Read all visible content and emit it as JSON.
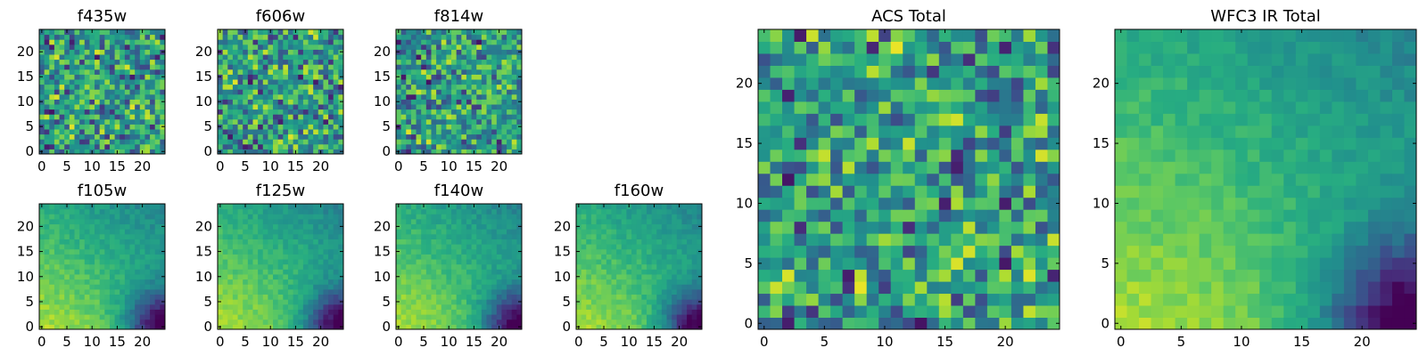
{
  "figure": {
    "colormap": "viridis",
    "background": "#ffffff"
  },
  "chart_data": [
    {
      "id": "f435w",
      "type": "heatmap",
      "title": "f435w",
      "pattern": "noise",
      "seed": 11,
      "n": 25,
      "xticks": [
        0,
        5,
        10,
        15,
        20
      ],
      "yticks": [
        0,
        5,
        10,
        15,
        20
      ],
      "xlim": [
        0,
        24
      ],
      "ylim": [
        0,
        24
      ],
      "grid": false
    },
    {
      "id": "f606w",
      "type": "heatmap",
      "title": "f606w",
      "pattern": "noise",
      "seed": 23,
      "n": 25,
      "xticks": [
        0,
        5,
        10,
        15,
        20
      ],
      "yticks": [
        0,
        5,
        10,
        15,
        20
      ],
      "xlim": [
        0,
        24
      ],
      "ylim": [
        0,
        24
      ],
      "grid": false
    },
    {
      "id": "f814w",
      "type": "heatmap",
      "title": "f814w",
      "pattern": "noise",
      "seed": 37,
      "n": 25,
      "xticks": [
        0,
        5,
        10,
        15,
        20
      ],
      "yticks": [
        0,
        5,
        10,
        15,
        20
      ],
      "xlim": [
        0,
        24
      ],
      "ylim": [
        0,
        24
      ],
      "grid": false
    },
    {
      "id": "f105w",
      "type": "heatmap",
      "title": "f105w",
      "pattern": "smooth",
      "seed": 41,
      "n": 25,
      "xticks": [
        0,
        5,
        10,
        15,
        20
      ],
      "yticks": [
        0,
        5,
        10,
        15,
        20
      ],
      "xlim": [
        0,
        24
      ],
      "ylim": [
        0,
        24
      ],
      "grid": false
    },
    {
      "id": "f125w",
      "type": "heatmap",
      "title": "f125w",
      "pattern": "smooth",
      "seed": 53,
      "n": 25,
      "xticks": [
        0,
        5,
        10,
        15,
        20
      ],
      "yticks": [
        0,
        5,
        10,
        15,
        20
      ],
      "xlim": [
        0,
        24
      ],
      "ylim": [
        0,
        24
      ],
      "grid": false
    },
    {
      "id": "f140w",
      "type": "heatmap",
      "title": "f140w",
      "pattern": "smooth",
      "seed": 67,
      "n": 25,
      "xticks": [
        0,
        5,
        10,
        15,
        20
      ],
      "yticks": [
        0,
        5,
        10,
        15,
        20
      ],
      "xlim": [
        0,
        24
      ],
      "ylim": [
        0,
        24
      ],
      "grid": false
    },
    {
      "id": "f160w",
      "type": "heatmap",
      "title": "f160w",
      "pattern": "smooth",
      "seed": 79,
      "n": 25,
      "xticks": [
        0,
        5,
        10,
        15,
        20
      ],
      "yticks": [
        0,
        5,
        10,
        15,
        20
      ],
      "xlim": [
        0,
        24
      ],
      "ylim": [
        0,
        24
      ],
      "grid": false
    },
    {
      "id": "acs-total",
      "type": "heatmap",
      "title": "ACS Total",
      "pattern": "noise",
      "seed": 97,
      "n": 25,
      "xticks": [
        0,
        5,
        10,
        15,
        20
      ],
      "yticks": [
        0,
        5,
        10,
        15,
        20
      ],
      "xlim": [
        0,
        24
      ],
      "ylim": [
        0,
        24
      ],
      "grid": false
    },
    {
      "id": "wfc3-ir-total",
      "type": "heatmap",
      "title": "WFC3 IR Total",
      "pattern": "smooth",
      "seed": 101,
      "n": 25,
      "xticks": [
        0,
        5,
        10,
        15,
        20
      ],
      "yticks": [
        0,
        5,
        10,
        15,
        20
      ],
      "xlim": [
        0,
        24
      ],
      "ylim": [
        0,
        24
      ],
      "grid": false
    }
  ]
}
